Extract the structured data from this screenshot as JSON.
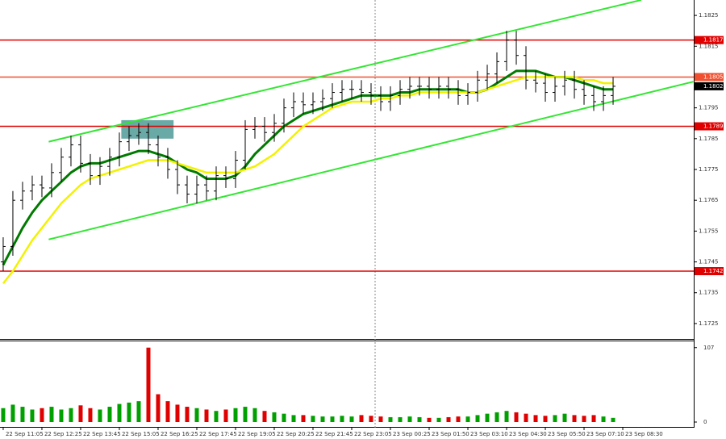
{
  "chart_data": {
    "type": "ohlc",
    "time_labels": [
      "22 Sep 11:05",
      "22 Sep 12:25",
      "22 Sep 13:45",
      "22 Sep 15:05",
      "22 Sep 16:25",
      "22 Sep 17:45",
      "22 Sep 19:05",
      "22 Sep 20:25",
      "22 Sep 21:45",
      "22 Sep 23:05",
      "23 Sep 00:25",
      "23 Sep 01:50",
      "23 Sep 03:10",
      "23 Sep 04:30",
      "23 Sep 05:50",
      "23 Sep 07:10",
      "23 Sep 08:30"
    ],
    "xlim": [
      -0.33,
      71.33
    ],
    "ylim": [
      1.172,
      1.183
    ],
    "yticks": [
      1.1825,
      1.1815,
      1.1805,
      1.1795,
      1.1785,
      1.1775,
      1.1765,
      1.1755,
      1.1745,
      1.1735,
      1.1725
    ],
    "open": [
      1.1745,
      1.175,
      1.1765,
      1.1768,
      1.177,
      1.1769,
      1.1774,
      1.1779,
      1.1783,
      1.1777,
      1.1773,
      1.1776,
      1.1779,
      1.1784,
      1.1786,
      1.1787,
      1.1783,
      1.1779,
      1.1775,
      1.177,
      1.1767,
      1.177,
      1.1768,
      1.1773,
      1.1772,
      1.1778,
      1.1788,
      1.1789,
      1.1787,
      1.179,
      1.1795,
      1.1797,
      1.1796,
      1.1797,
      1.1798,
      1.18,
      1.1801,
      1.1801,
      1.18,
      1.1799,
      1.1797,
      1.1799,
      1.1801,
      1.1802,
      1.1802,
      1.1801,
      1.1802,
      1.1801,
      1.1799,
      1.18,
      1.1804,
      1.1806,
      1.181,
      1.1817,
      1.1812,
      1.1804,
      1.1803,
      1.18,
      1.1802,
      1.1804,
      1.1801,
      1.1799,
      1.1797,
      1.1799
    ],
    "high": [
      1.1753,
      1.1768,
      1.1771,
      1.1773,
      1.1773,
      1.1777,
      1.1782,
      1.1786,
      1.1786,
      1.178,
      1.1779,
      1.1782,
      1.1787,
      1.1789,
      1.179,
      1.179,
      1.1786,
      1.1782,
      1.1778,
      1.1773,
      1.1773,
      1.1773,
      1.1776,
      1.1776,
      1.1781,
      1.1791,
      1.1792,
      1.1792,
      1.1793,
      1.1798,
      1.18,
      1.18,
      1.18,
      1.1801,
      1.1803,
      1.1804,
      1.1804,
      1.1804,
      1.1803,
      1.1802,
      1.1802,
      1.1804,
      1.1805,
      1.1805,
      1.1805,
      1.1805,
      1.1805,
      1.1804,
      1.1803,
      1.1807,
      1.1809,
      1.1813,
      1.182,
      1.182,
      1.1815,
      1.1807,
      1.1806,
      1.1805,
      1.1807,
      1.1807,
      1.1804,
      1.1802,
      1.1802,
      1.1805
    ],
    "low": [
      1.1742,
      1.1747,
      1.1762,
      1.1765,
      1.1766,
      1.1766,
      1.1771,
      1.1776,
      1.1774,
      1.177,
      1.177,
      1.1773,
      1.1776,
      1.1781,
      1.1783,
      1.178,
      1.1776,
      1.1772,
      1.1767,
      1.1764,
      1.1764,
      1.1765,
      1.1765,
      1.1769,
      1.1769,
      1.1775,
      1.1785,
      1.1784,
      1.1784,
      1.1787,
      1.1792,
      1.1793,
      1.1793,
      1.1794,
      1.1795,
      1.1797,
      1.1798,
      1.1797,
      1.1796,
      1.1794,
      1.1794,
      1.1796,
      1.1798,
      1.1799,
      1.1798,
      1.1798,
      1.1798,
      1.1796,
      1.1796,
      1.1797,
      1.1801,
      1.1803,
      1.1807,
      1.1809,
      1.1801,
      1.18,
      1.1797,
      1.1797,
      1.1799,
      1.1798,
      1.1796,
      1.1794,
      1.1794,
      1.1796
    ],
    "close": [
      1.175,
      1.1765,
      1.1768,
      1.177,
      1.1769,
      1.1774,
      1.1779,
      1.1783,
      1.1777,
      1.1773,
      1.1776,
      1.1779,
      1.1784,
      1.1786,
      1.1787,
      1.1783,
      1.1779,
      1.1775,
      1.177,
      1.1767,
      1.177,
      1.1768,
      1.1773,
      1.1772,
      1.1778,
      1.1788,
      1.1789,
      1.1787,
      1.179,
      1.1795,
      1.1797,
      1.1796,
      1.1797,
      1.1798,
      1.18,
      1.1801,
      1.1801,
      1.18,
      1.1799,
      1.1797,
      1.1799,
      1.1801,
      1.1802,
      1.1802,
      1.1801,
      1.1802,
      1.1801,
      1.1799,
      1.18,
      1.1804,
      1.1806,
      1.181,
      1.1817,
      1.1812,
      1.1804,
      1.1803,
      1.18,
      1.1802,
      1.1804,
      1.1801,
      1.1799,
      1.1797,
      1.1799,
      1.1802
    ],
    "bar_color": "#000000",
    "moving_averages": [
      {
        "color": "#007a00",
        "width": 3,
        "values": [
          1.1744,
          1.175,
          1.1756,
          1.1761,
          1.1765,
          1.1768,
          1.1771,
          1.1774,
          1.1776,
          1.1777,
          1.1777,
          1.1778,
          1.1779,
          1.178,
          1.1781,
          1.1781,
          1.178,
          1.1779,
          1.1777,
          1.1775,
          1.1774,
          1.1772,
          1.1772,
          1.1772,
          1.1773,
          1.1776,
          1.178,
          1.1783,
          1.1786,
          1.1789,
          1.1791,
          1.1793,
          1.1794,
          1.1795,
          1.1796,
          1.1797,
          1.1798,
          1.1799,
          1.1799,
          1.1799,
          1.1799,
          1.18,
          1.18,
          1.1801,
          1.1801,
          1.1801,
          1.1801,
          1.1801,
          1.18,
          1.18,
          1.1801,
          1.1803,
          1.1805,
          1.1807,
          1.1807,
          1.1807,
          1.1806,
          1.1805,
          1.1805,
          1.1804,
          1.1803,
          1.1802,
          1.1801,
          1.1801
        ]
      },
      {
        "color": "#f2f200",
        "width": 2.5,
        "values": [
          1.1738,
          1.1742,
          1.1747,
          1.1752,
          1.1756,
          1.176,
          1.1764,
          1.1767,
          1.177,
          1.1772,
          1.1773,
          1.1774,
          1.1775,
          1.1776,
          1.1777,
          1.1778,
          1.1778,
          1.1778,
          1.1777,
          1.1776,
          1.1775,
          1.1774,
          1.1774,
          1.1774,
          1.1774,
          1.1775,
          1.1776,
          1.1778,
          1.178,
          1.1783,
          1.1786,
          1.1789,
          1.1791,
          1.1793,
          1.1795,
          1.1796,
          1.1797,
          1.1797,
          1.1797,
          1.1798,
          1.1798,
          1.1799,
          1.1799,
          1.18,
          1.18,
          1.18,
          1.18,
          1.18,
          1.18,
          1.18,
          1.1801,
          1.1802,
          1.1803,
          1.1804,
          1.1805,
          1.1805,
          1.1805,
          1.1805,
          1.1805,
          1.1805,
          1.1804,
          1.1804,
          1.1803,
          1.1803
        ]
      }
    ],
    "channels": [
      {
        "color": "#33e633",
        "x": [
          4.7,
          65.9
        ],
        "values": [
          1.1784,
          1.183
        ]
      },
      {
        "color": "#33e633",
        "x": [
          4.7,
          71.3
        ],
        "values": [
          1.17523,
          1.18035
        ]
      }
    ],
    "highlight": {
      "color": "#4f9a96",
      "x": [
        12.2,
        17.6
      ],
      "y": [
        1.1785,
        1.1791
      ]
    },
    "levels": [
      {
        "value": 1.1817,
        "color": "#e00000"
      },
      {
        "value": 1.1805,
        "color": "#f05030"
      },
      {
        "value": 1.1789,
        "color": "#e00000"
      },
      {
        "value": 1.1742,
        "color": "#e00000"
      }
    ],
    "last_price": 1.1802,
    "volume": {
      "ylim": [
        0,
        116
      ],
      "yticks": [
        107,
        0
      ],
      "up_color": "#00a000",
      "down_color": "#e00000",
      "values": [
        20,
        25,
        22,
        18,
        20,
        22,
        18,
        20,
        24,
        20,
        18,
        22,
        26,
        28,
        30,
        107,
        40,
        30,
        25,
        22,
        20,
        18,
        16,
        18,
        20,
        22,
        20,
        16,
        14,
        12,
        10,
        10,
        9,
        8,
        8,
        9,
        8,
        10,
        9,
        8,
        7,
        7,
        8,
        7,
        6,
        6,
        7,
        8,
        8,
        10,
        12,
        14,
        16,
        14,
        12,
        10,
        9,
        10,
        12,
        10,
        9,
        10,
        8,
        6
      ]
    }
  }
}
